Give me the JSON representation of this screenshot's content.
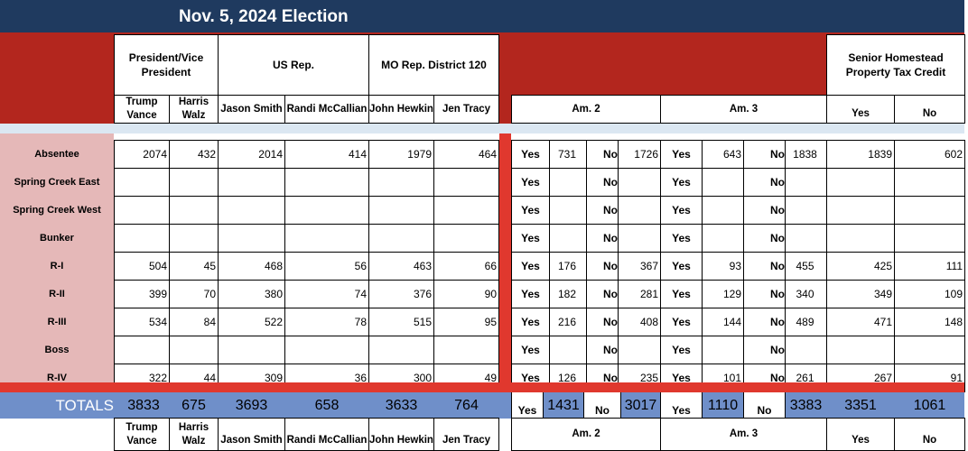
{
  "title": "Nov. 5, 2024 Election",
  "headers": {
    "president": "President/Vice President",
    "us_rep": "US Rep.",
    "mo_rep": "MO Rep. District 120",
    "senior": "Senior Homestead Property Tax Credit"
  },
  "subheaders": {
    "trump": "Trump Vance",
    "harris": "Harris Walz",
    "smith": "Jason Smith",
    "mccallian": "Randi McCallian",
    "hewkin": "John Hewkin",
    "tracy": "Jen Tracy",
    "am2": "Am. 2",
    "am3": "Am. 3",
    "yes": "Yes",
    "no": "No"
  },
  "labels": {
    "yes": "Yes",
    "no": "No",
    "totals": "TOTALS"
  },
  "rows": [
    {
      "name": "Absentee",
      "trump": "2074",
      "harris": "432",
      "smith": "2014",
      "mccallian": "414",
      "hewkin": "1979",
      "tracy": "464",
      "am2_yes": "731",
      "am2_no": "1726",
      "am3_yes": "643",
      "am3_no": "1838",
      "sr_yes": "1839",
      "sr_no": "602"
    },
    {
      "name": "Spring Creek East",
      "trump": "",
      "harris": "",
      "smith": "",
      "mccallian": "",
      "hewkin": "",
      "tracy": "",
      "am2_yes": "",
      "am2_no": "",
      "am3_yes": "",
      "am3_no": "",
      "sr_yes": "",
      "sr_no": ""
    },
    {
      "name": "Spring Creek West",
      "trump": "",
      "harris": "",
      "smith": "",
      "mccallian": "",
      "hewkin": "",
      "tracy": "",
      "am2_yes": "",
      "am2_no": "",
      "am3_yes": "",
      "am3_no": "",
      "sr_yes": "",
      "sr_no": ""
    },
    {
      "name": "Bunker",
      "trump": "",
      "harris": "",
      "smith": "",
      "mccallian": "",
      "hewkin": "",
      "tracy": "",
      "am2_yes": "",
      "am2_no": "",
      "am3_yes": "",
      "am3_no": "",
      "sr_yes": "",
      "sr_no": ""
    },
    {
      "name": "R-I",
      "trump": "504",
      "harris": "45",
      "smith": "468",
      "mccallian": "56",
      "hewkin": "463",
      "tracy": "66",
      "am2_yes": "176",
      "am2_no": "367",
      "am3_yes": "93",
      "am3_no": "455",
      "sr_yes": "425",
      "sr_no": "111"
    },
    {
      "name": "R-II",
      "trump": "399",
      "harris": "70",
      "smith": "380",
      "mccallian": "74",
      "hewkin": "376",
      "tracy": "90",
      "am2_yes": "182",
      "am2_no": "281",
      "am3_yes": "129",
      "am3_no": "340",
      "sr_yes": "349",
      "sr_no": "109"
    },
    {
      "name": "R-III",
      "trump": "534",
      "harris": "84",
      "smith": "522",
      "mccallian": "78",
      "hewkin": "515",
      "tracy": "95",
      "am2_yes": "216",
      "am2_no": "408",
      "am3_yes": "144",
      "am3_no": "489",
      "sr_yes": "471",
      "sr_no": "148"
    },
    {
      "name": "Boss",
      "trump": "",
      "harris": "",
      "smith": "",
      "mccallian": "",
      "hewkin": "",
      "tracy": "",
      "am2_yes": "",
      "am2_no": "",
      "am3_yes": "",
      "am3_no": "",
      "sr_yes": "",
      "sr_no": ""
    },
    {
      "name": "R-IV",
      "trump": "322",
      "harris": "44",
      "smith": "309",
      "mccallian": "36",
      "hewkin": "300",
      "tracy": "49",
      "am2_yes": "126",
      "am2_no": "235",
      "am3_yes": "101",
      "am3_no": "261",
      "sr_yes": "267",
      "sr_no": "91"
    }
  ],
  "totals": {
    "trump": "3833",
    "harris": "675",
    "smith": "3693",
    "mccallian": "658",
    "hewkin": "3633",
    "tracy": "764",
    "am2_yes": "1431",
    "am2_no": "3017",
    "am3_yes": "1110",
    "am3_no": "3383",
    "sr_yes": "3351",
    "sr_no": "1061"
  }
}
